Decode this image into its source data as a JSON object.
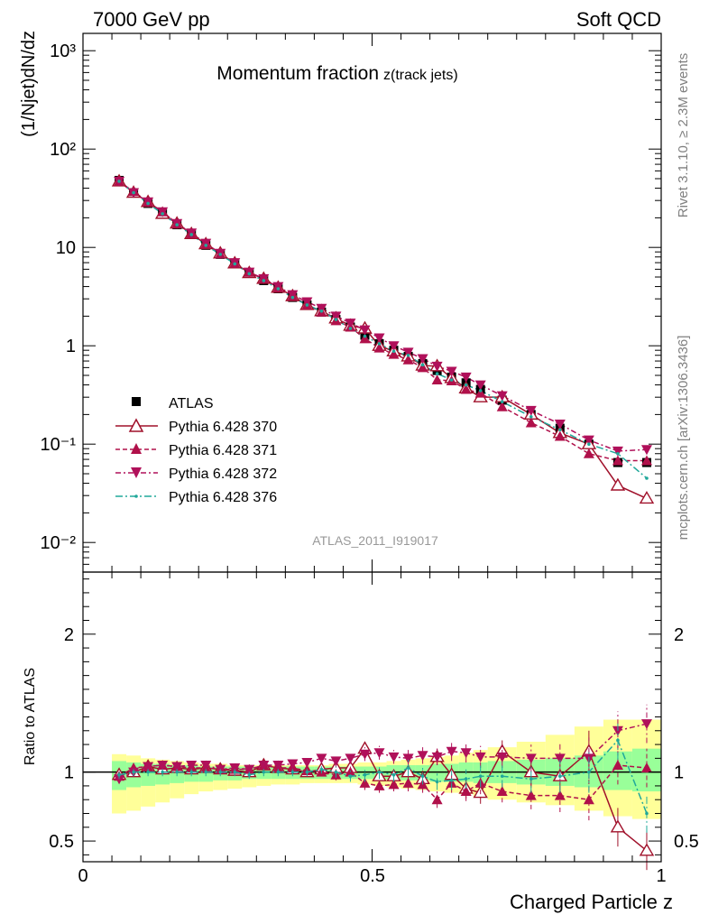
{
  "header": {
    "left": "7000 GeV pp",
    "right": "Soft QCD"
  },
  "side_labels": {
    "top": "Rivet 3.1.10, ≥ 2.3M events",
    "bottom": "mcplots.cern.ch [arXiv:1306.3436]"
  },
  "colors": {
    "data": "#000000",
    "p370": "#a0102a",
    "p371": "#b0104a",
    "p372": "#b0105a",
    "p376": "#20a89a",
    "band_yellow": "#ffff99",
    "band_green": "#99ff99"
  },
  "chart_data": [
    {
      "type": "scatter",
      "title": "Momentum fraction",
      "title_sub": "z(track jets)",
      "ylabel": "(1/Njet)dN/dz",
      "xlabel": "Charged Particle z",
      "ylog": true,
      "xlim": [
        0,
        1
      ],
      "ylim": [
        0.005,
        1500
      ],
      "ytick_labels": [
        "10⁻²",
        "10⁻¹",
        "1",
        "10",
        "10²",
        "10³"
      ],
      "xtick_labels": [
        "0",
        "0.5",
        "1"
      ],
      "watermark": "ATLAS_2011_I919017",
      "legend_position": "lower-left",
      "x": [
        0.0625,
        0.0875,
        0.1125,
        0.1375,
        0.1625,
        0.1875,
        0.2125,
        0.2375,
        0.2625,
        0.2875,
        0.3125,
        0.3375,
        0.3625,
        0.3875,
        0.4125,
        0.4375,
        0.4625,
        0.4875,
        0.5125,
        0.5375,
        0.5625,
        0.5875,
        0.6125,
        0.6375,
        0.6625,
        0.6875,
        0.725,
        0.775,
        0.825,
        0.875,
        0.925,
        0.975
      ],
      "series": [
        {
          "name": "ATLAS",
          "marker": "square",
          "values": [
            48,
            36,
            28,
            22,
            17,
            13.5,
            10.5,
            8.5,
            6.8,
            5.5,
            4.6,
            3.8,
            3.1,
            2.6,
            2.2,
            1.85,
            1.55,
            1.28,
            1.05,
            0.9,
            0.78,
            0.66,
            0.56,
            0.48,
            0.42,
            0.36,
            0.28,
            0.2,
            0.145,
            0.1,
            0.065,
            0.065
          ]
        },
        {
          "name": "Pythia 6.428 370",
          "marker": "open-triangle-up",
          "values": [
            47,
            36,
            29,
            22,
            17.5,
            13.7,
            10.8,
            8.7,
            6.9,
            5.5,
            4.8,
            3.9,
            3.2,
            2.6,
            2.25,
            1.9,
            1.6,
            1.5,
            1.0,
            0.88,
            0.78,
            0.63,
            0.62,
            0.47,
            0.37,
            0.3,
            0.3,
            0.2,
            0.13,
            0.1,
            0.038,
            0.028
          ]
        },
        {
          "name": "Pythia 6.428 371",
          "marker": "triangle-up",
          "values": [
            47,
            37,
            29,
            23,
            17.5,
            13.8,
            10.8,
            8.6,
            6.9,
            5.6,
            4.8,
            3.9,
            3.2,
            2.6,
            2.2,
            1.8,
            1.55,
            1.18,
            0.95,
            0.82,
            0.72,
            0.6,
            0.45,
            0.44,
            0.36,
            0.33,
            0.24,
            0.165,
            0.12,
            0.08,
            0.068,
            0.068
          ]
        },
        {
          "name": "Pythia 6.428 372",
          "marker": "triangle-down",
          "values": [
            47,
            36,
            29,
            23,
            17.5,
            14,
            11,
            8.7,
            7,
            5.6,
            4.8,
            4.0,
            3.3,
            2.8,
            2.4,
            2.0,
            1.7,
            1.45,
            1.2,
            1.0,
            0.86,
            0.74,
            0.62,
            0.55,
            0.48,
            0.4,
            0.31,
            0.22,
            0.16,
            0.11,
            0.085,
            0.088
          ]
        },
        {
          "name": "Pythia 6.428 376",
          "marker": "dot",
          "values": [
            47,
            36,
            28,
            22,
            17,
            13.5,
            10.5,
            8.5,
            6.8,
            5.4,
            4.6,
            3.8,
            3.1,
            2.6,
            2.25,
            1.85,
            1.5,
            1.25,
            1.05,
            0.88,
            0.8,
            0.64,
            0.52,
            0.45,
            0.4,
            0.35,
            0.27,
            0.19,
            0.14,
            0.1,
            0.08,
            0.045
          ]
        }
      ]
    },
    {
      "type": "scatter",
      "ylabel": "Ratio to ATLAS",
      "xlabel": "Charged Particle z",
      "xlim": [
        0,
        1
      ],
      "ylim": [
        0.35,
        2.45
      ],
      "ytick_labels": [
        "0.5",
        "1",
        "2"
      ],
      "bin_edges": [
        0.05,
        0.075,
        0.1,
        0.125,
        0.15,
        0.175,
        0.2,
        0.225,
        0.25,
        0.275,
        0.3,
        0.325,
        0.35,
        0.375,
        0.4,
        0.425,
        0.45,
        0.475,
        0.5,
        0.525,
        0.55,
        0.575,
        0.6,
        0.625,
        0.65,
        0.675,
        0.7,
        0.75,
        0.8,
        0.85,
        0.9,
        0.95,
        1.0
      ],
      "band_yellow": [
        [
          0.7,
          1.13
        ],
        [
          0.72,
          1.12
        ],
        [
          0.75,
          1.1
        ],
        [
          0.78,
          1.09
        ],
        [
          0.81,
          1.08
        ],
        [
          0.84,
          1.07
        ],
        [
          0.86,
          1.06
        ],
        [
          0.87,
          1.06
        ],
        [
          0.88,
          1.05
        ],
        [
          0.89,
          1.05
        ],
        [
          0.9,
          1.05
        ],
        [
          0.91,
          1.05
        ],
        [
          0.91,
          1.05
        ],
        [
          0.92,
          1.05
        ],
        [
          0.92,
          1.05
        ],
        [
          0.92,
          1.06
        ],
        [
          0.92,
          1.06
        ],
        [
          0.91,
          1.07
        ],
        [
          0.9,
          1.07
        ],
        [
          0.89,
          1.08
        ],
        [
          0.88,
          1.09
        ],
        [
          0.87,
          1.1
        ],
        [
          0.86,
          1.11
        ],
        [
          0.85,
          1.12
        ],
        [
          0.84,
          1.14
        ],
        [
          0.82,
          1.16
        ],
        [
          0.8,
          1.18
        ],
        [
          0.78,
          1.22
        ],
        [
          0.76,
          1.27
        ],
        [
          0.72,
          1.33
        ],
        [
          0.68,
          1.38
        ],
        [
          0.66,
          1.38
        ]
      ],
      "band_green": [
        [
          0.87,
          1.08
        ],
        [
          0.89,
          1.07
        ],
        [
          0.9,
          1.06
        ],
        [
          0.91,
          1.06
        ],
        [
          0.92,
          1.05
        ],
        [
          0.93,
          1.05
        ],
        [
          0.93,
          1.04
        ],
        [
          0.94,
          1.04
        ],
        [
          0.94,
          1.04
        ],
        [
          0.95,
          1.04
        ],
        [
          0.95,
          1.04
        ],
        [
          0.95,
          1.04
        ],
        [
          0.95,
          1.04
        ],
        [
          0.95,
          1.04
        ],
        [
          0.95,
          1.04
        ],
        [
          0.95,
          1.04
        ],
        [
          0.95,
          1.04
        ],
        [
          0.95,
          1.04
        ],
        [
          0.95,
          1.04
        ],
        [
          0.94,
          1.05
        ],
        [
          0.94,
          1.05
        ],
        [
          0.94,
          1.05
        ],
        [
          0.93,
          1.06
        ],
        [
          0.93,
          1.06
        ],
        [
          0.93,
          1.07
        ],
        [
          0.92,
          1.07
        ],
        [
          0.92,
          1.08
        ],
        [
          0.91,
          1.09
        ],
        [
          0.9,
          1.1
        ],
        [
          0.89,
          1.12
        ],
        [
          0.87,
          1.15
        ],
        [
          0.86,
          1.17
        ]
      ],
      "series": [
        {
          "name": "Pythia 6.428 370",
          "values": [
            0.98,
            1.0,
            1.04,
            1.02,
            1.03,
            1.02,
            1.03,
            1.02,
            1.01,
            1.0,
            1.05,
            1.03,
            1.02,
            1.0,
            1.02,
            1.03,
            1.03,
            1.17,
            0.97,
            0.97,
            1.0,
            0.95,
            1.11,
            0.98,
            0.88,
            0.85,
            1.15,
            1.0,
            0.97,
            1.15,
            0.6,
            0.43
          ],
          "errors": [
            0.03,
            0.03,
            0.03,
            0.03,
            0.03,
            0.03,
            0.03,
            0.03,
            0.03,
            0.03,
            0.03,
            0.03,
            0.03,
            0.03,
            0.03,
            0.04,
            0.04,
            0.05,
            0.05,
            0.05,
            0.06,
            0.06,
            0.06,
            0.07,
            0.07,
            0.08,
            0.08,
            0.1,
            0.12,
            0.15,
            0.14,
            0.14
          ]
        },
        {
          "name": "Pythia 6.428 371",
          "values": [
            0.97,
            1.03,
            1.04,
            1.05,
            1.04,
            1.03,
            1.03,
            1.02,
            1.02,
            1.02,
            1.05,
            1.03,
            1.03,
            1.01,
            1.0,
            0.98,
            1.0,
            0.92,
            0.9,
            0.91,
            0.92,
            0.91,
            0.8,
            0.92,
            0.86,
            0.92,
            0.86,
            0.83,
            0.83,
            0.8,
            1.05,
            1.03
          ],
          "errors": [
            0.03,
            0.03,
            0.03,
            0.03,
            0.03,
            0.03,
            0.03,
            0.03,
            0.03,
            0.03,
            0.03,
            0.03,
            0.03,
            0.03,
            0.03,
            0.04,
            0.04,
            0.05,
            0.05,
            0.05,
            0.06,
            0.06,
            0.06,
            0.07,
            0.07,
            0.08,
            0.08,
            0.1,
            0.12,
            0.15,
            0.14,
            0.14
          ]
        },
        {
          "name": "Pythia 6.428 372",
          "values": [
            0.95,
            1.0,
            1.04,
            1.05,
            1.04,
            1.05,
            1.05,
            1.02,
            1.03,
            1.02,
            1.05,
            1.05,
            1.06,
            1.07,
            1.1,
            1.08,
            1.1,
            1.13,
            1.14,
            1.11,
            1.1,
            1.12,
            1.11,
            1.15,
            1.14,
            1.11,
            1.11,
            1.1,
            1.1,
            1.1,
            1.3,
            1.35
          ],
          "errors": [
            0.03,
            0.03,
            0.03,
            0.03,
            0.03,
            0.03,
            0.03,
            0.03,
            0.03,
            0.03,
            0.03,
            0.03,
            0.03,
            0.03,
            0.03,
            0.04,
            0.04,
            0.05,
            0.05,
            0.05,
            0.06,
            0.06,
            0.06,
            0.07,
            0.07,
            0.08,
            0.08,
            0.1,
            0.12,
            0.15,
            0.14,
            0.14
          ]
        },
        {
          "name": "Pythia 6.428 376",
          "values": [
            0.98,
            1.0,
            1.0,
            1.0,
            1.0,
            1.0,
            1.0,
            1.0,
            1.0,
            0.98,
            1.0,
            1.0,
            1.0,
            1.0,
            1.02,
            1.0,
            0.97,
            0.98,
            1.0,
            0.98,
            1.03,
            0.97,
            0.93,
            0.94,
            0.95,
            0.97,
            0.97,
            0.95,
            0.97,
            1.0,
            1.23,
            0.7
          ],
          "errors": [
            0.03,
            0.03,
            0.03,
            0.03,
            0.03,
            0.03,
            0.03,
            0.03,
            0.03,
            0.03,
            0.03,
            0.03,
            0.03,
            0.03,
            0.03,
            0.04,
            0.04,
            0.05,
            0.05,
            0.05,
            0.06,
            0.06,
            0.06,
            0.07,
            0.07,
            0.08,
            0.08,
            0.1,
            0.12,
            0.15,
            0.14,
            0.14
          ]
        }
      ]
    }
  ],
  "legend": {
    "items": [
      {
        "label": "ATLAS"
      },
      {
        "label": "Pythia 6.428 370"
      },
      {
        "label": "Pythia 6.428 371"
      },
      {
        "label": "Pythia 6.428 372"
      },
      {
        "label": "Pythia 6.428 376"
      }
    ]
  }
}
